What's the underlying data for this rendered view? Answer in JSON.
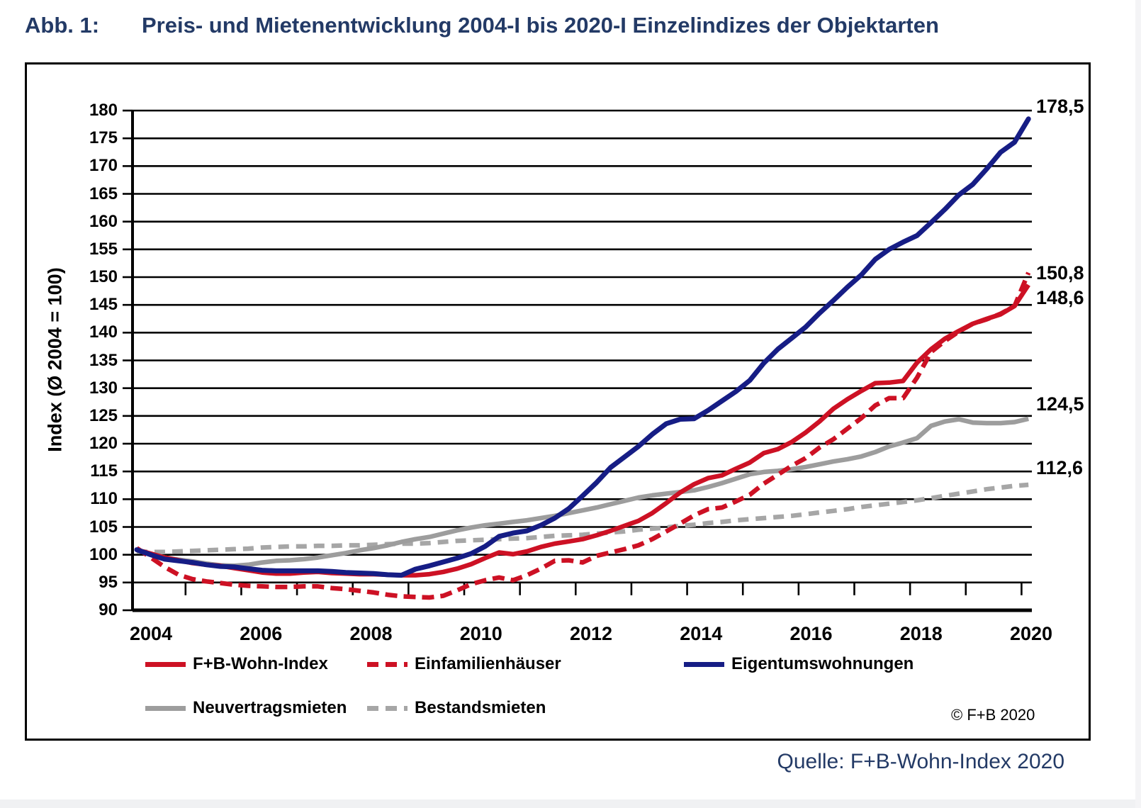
{
  "title": {
    "prefix": "Abb. 1:",
    "text": "Preis- und Mietenentwicklung 2004-I bis 2020-I Einzelindizes der Objektarten"
  },
  "source": "Quelle: F+B-Wohn-Index 2020",
  "copyright": "© F+B  2020",
  "chart_data": {
    "type": "line",
    "title": "Preis- und Mietenentwicklung 2004-I bis 2020-I Einzelindizes der Objektarten",
    "ylabel": "Index (Ø 2004 = 100)",
    "ylim": [
      90,
      180
    ],
    "ytick_step": 5,
    "ytick_labels": [
      "90",
      "95",
      "100",
      "105",
      "110",
      "115",
      "120",
      "125",
      "130",
      "135",
      "140",
      "145",
      "150",
      "155",
      "160",
      "165",
      "170",
      "175",
      "180"
    ],
    "xtick_labels": [
      "2004",
      "2006",
      "2008",
      "2010",
      "2012",
      "2014",
      "2016",
      "2018",
      "2020"
    ],
    "x_start": 2004.0,
    "x_end": 2020.0,
    "x_step_years": 0.25,
    "grid": "horizontal-black-heavy",
    "legend_position": "bottom",
    "series": [
      {
        "name": "F+B-Wohn-Index",
        "color": "#cd1124",
        "style": "solid",
        "end_label": "148,6",
        "values": [
          100.9,
          100.2,
          99.5,
          99.0,
          98.5,
          98.2,
          98.0,
          97.6,
          97.2,
          96.8,
          96.6,
          96.6,
          96.8,
          96.9,
          96.7,
          96.6,
          96.5,
          96.5,
          96.4,
          96.3,
          96.3,
          96.5,
          96.9,
          97.5,
          98.3,
          99.4,
          100.4,
          100.1,
          100.6,
          101.4,
          102.0,
          102.4,
          102.8,
          103.5,
          104.3,
          105.2,
          106.1,
          107.5,
          109.3,
          111.2,
          112.7,
          113.8,
          114.3,
          115.5,
          116.6,
          118.3,
          119.0,
          120.3,
          122.0,
          124.0,
          126.3,
          128.0,
          129.5,
          130.9,
          131.0,
          131.3,
          134.6,
          137.0,
          138.9,
          140.3,
          141.6,
          142.5,
          143.3,
          144.8,
          148.6
        ]
      },
      {
        "name": "Einfamilienhäuser",
        "color": "#cd1124",
        "style": "dashed",
        "end_label": "150,8",
        "values": [
          101.2,
          99.5,
          97.8,
          96.4,
          95.6,
          95.2,
          94.9,
          94.6,
          94.4,
          94.3,
          94.2,
          94.2,
          94.3,
          94.3,
          94.0,
          93.8,
          93.5,
          93.2,
          92.8,
          92.5,
          92.4,
          92.3,
          92.6,
          93.6,
          94.7,
          95.4,
          95.9,
          95.4,
          96.3,
          97.5,
          98.9,
          99.0,
          98.6,
          99.8,
          100.4,
          101.0,
          101.7,
          102.8,
          104.2,
          105.6,
          107.1,
          108.2,
          108.5,
          109.6,
          110.8,
          112.8,
          114.4,
          116.0,
          117.4,
          119.3,
          120.8,
          122.7,
          124.6,
          126.9,
          128.2,
          128.2,
          131.9,
          136.5,
          138.5,
          140.2,
          141.6,
          142.4,
          143.4,
          144.8,
          150.8
        ]
      },
      {
        "name": "Eigentumswohnungen",
        "color": "#161d85",
        "style": "solid",
        "end_label": "178,5",
        "values": [
          100.9,
          100.0,
          99.2,
          98.9,
          98.6,
          98.2,
          97.9,
          97.8,
          97.5,
          97.2,
          97.1,
          97.1,
          97.1,
          97.1,
          97.0,
          96.8,
          96.7,
          96.6,
          96.4,
          96.3,
          97.4,
          98.0,
          98.7,
          99.4,
          100.2,
          101.5,
          103.3,
          103.9,
          104.3,
          105.3,
          106.6,
          108.3,
          110.6,
          113.0,
          115.7,
          117.6,
          119.5,
          121.7,
          123.6,
          124.4,
          124.5,
          126.0,
          127.7,
          129.4,
          131.4,
          134.5,
          137.0,
          139.0,
          141.0,
          143.5,
          145.8,
          148.2,
          150.4,
          153.2,
          155.0,
          156.3,
          157.5,
          159.8,
          162.2,
          164.8,
          166.7,
          169.5,
          172.5,
          174.3,
          178.5
        ]
      },
      {
        "name": "Neuvertragsmieten",
        "color": "#9d9d9d",
        "style": "solid",
        "end_label": "124,5",
        "values": [
          100.8,
          100.2,
          99.5,
          99.1,
          98.8,
          98.4,
          98.1,
          98.0,
          98.2,
          98.6,
          98.9,
          99.0,
          99.2,
          99.5,
          99.9,
          100.3,
          100.8,
          101.2,
          101.7,
          102.3,
          102.8,
          103.2,
          103.8,
          104.4,
          104.9,
          105.3,
          105.6,
          105.9,
          106.2,
          106.6,
          107.0,
          107.5,
          108.0,
          108.5,
          109.1,
          109.7,
          110.3,
          110.7,
          111.0,
          111.3,
          111.6,
          112.2,
          112.9,
          113.7,
          114.5,
          114.9,
          115.1,
          115.4,
          115.8,
          116.3,
          116.8,
          117.2,
          117.7,
          118.5,
          119.5,
          120.2,
          121.0,
          123.2,
          124.0,
          124.4,
          123.8,
          123.7,
          123.7,
          123.9,
          124.5
        ]
      },
      {
        "name": "Bestandsmieten",
        "color": "#a6a6a6",
        "style": "dashed",
        "end_label": "112,6",
        "values": [
          100.6,
          100.5,
          100.5,
          100.6,
          100.7,
          100.8,
          100.9,
          101.0,
          101.1,
          101.3,
          101.4,
          101.5,
          101.5,
          101.6,
          101.6,
          101.7,
          101.7,
          101.8,
          101.9,
          102.0,
          102.0,
          102.1,
          102.3,
          102.5,
          102.6,
          102.7,
          102.8,
          102.9,
          103.0,
          103.2,
          103.4,
          103.5,
          103.6,
          103.8,
          104.0,
          104.2,
          104.5,
          104.7,
          104.9,
          105.2,
          105.4,
          105.7,
          105.9,
          106.2,
          106.4,
          106.6,
          106.8,
          107.0,
          107.3,
          107.6,
          107.9,
          108.2,
          108.6,
          108.9,
          109.2,
          109.5,
          109.8,
          110.2,
          110.6,
          111.0,
          111.4,
          111.8,
          112.1,
          112.4,
          112.6
        ]
      }
    ]
  }
}
